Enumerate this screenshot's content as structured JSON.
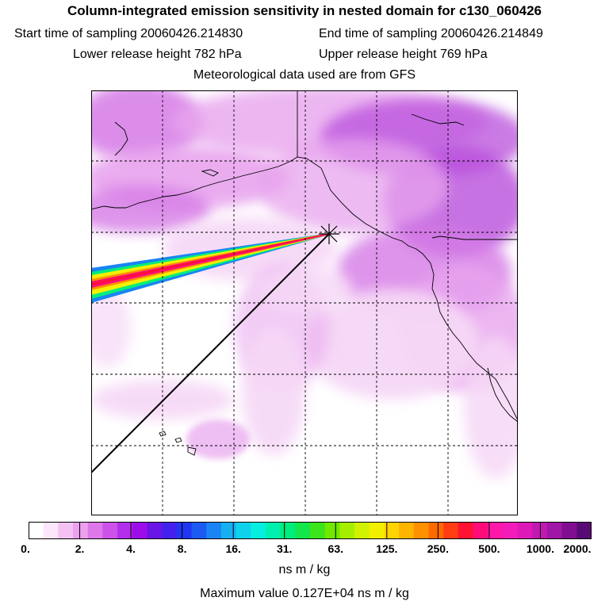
{
  "header": {
    "title": "Column-integrated emission sensitivity in nested domain for c130_060426",
    "start_sampling": "Start time of sampling 20060426.214830",
    "end_sampling": "End time of sampling 20060426.214849",
    "lower_release": "Lower release height  782 hPa",
    "upper_release": "Upper release height  769 hPa",
    "met_data": "Meteorological data used are from GFS"
  },
  "colorbar": {
    "tick_labels": [
      "0.",
      "2.",
      "4.",
      "8.",
      "16.",
      "31.",
      "63.",
      "125.",
      "250.",
      "500.",
      "1000.",
      "2000."
    ],
    "colors": [
      "#ffffff",
      "#fbe6fb",
      "#f3c2f3",
      "#eca0ee",
      "#de78ea",
      "#cc52ea",
      "#b32fec",
      "#9d0dea",
      "#6a14e6",
      "#4420ef",
      "#2036f0",
      "#1c5af2",
      "#1a84f4",
      "#16b0f2",
      "#0ed2ec",
      "#06eee0",
      "#00f0b0",
      "#00ec7c",
      "#12e64a",
      "#3ce41c",
      "#70e800",
      "#a6ee00",
      "#d0f200",
      "#f2f000",
      "#ffd400",
      "#ffb400",
      "#ff9000",
      "#ff6a00",
      "#ff3c12",
      "#ff1232",
      "#ff0c7a",
      "#ff18a8",
      "#f21cb8",
      "#dd1ab8",
      "#c018b0",
      "#a016a6",
      "#800f90",
      "#5a0a74"
    ]
  },
  "units": "ns m / kg",
  "max_value": "Maximum value  0.127E+04 ns m / kg",
  "plume_colors": {
    "light": "#f6d8f6",
    "mid": "#e8a4ee",
    "strong": "#d57ae6",
    "dark": "#b94fdc"
  }
}
